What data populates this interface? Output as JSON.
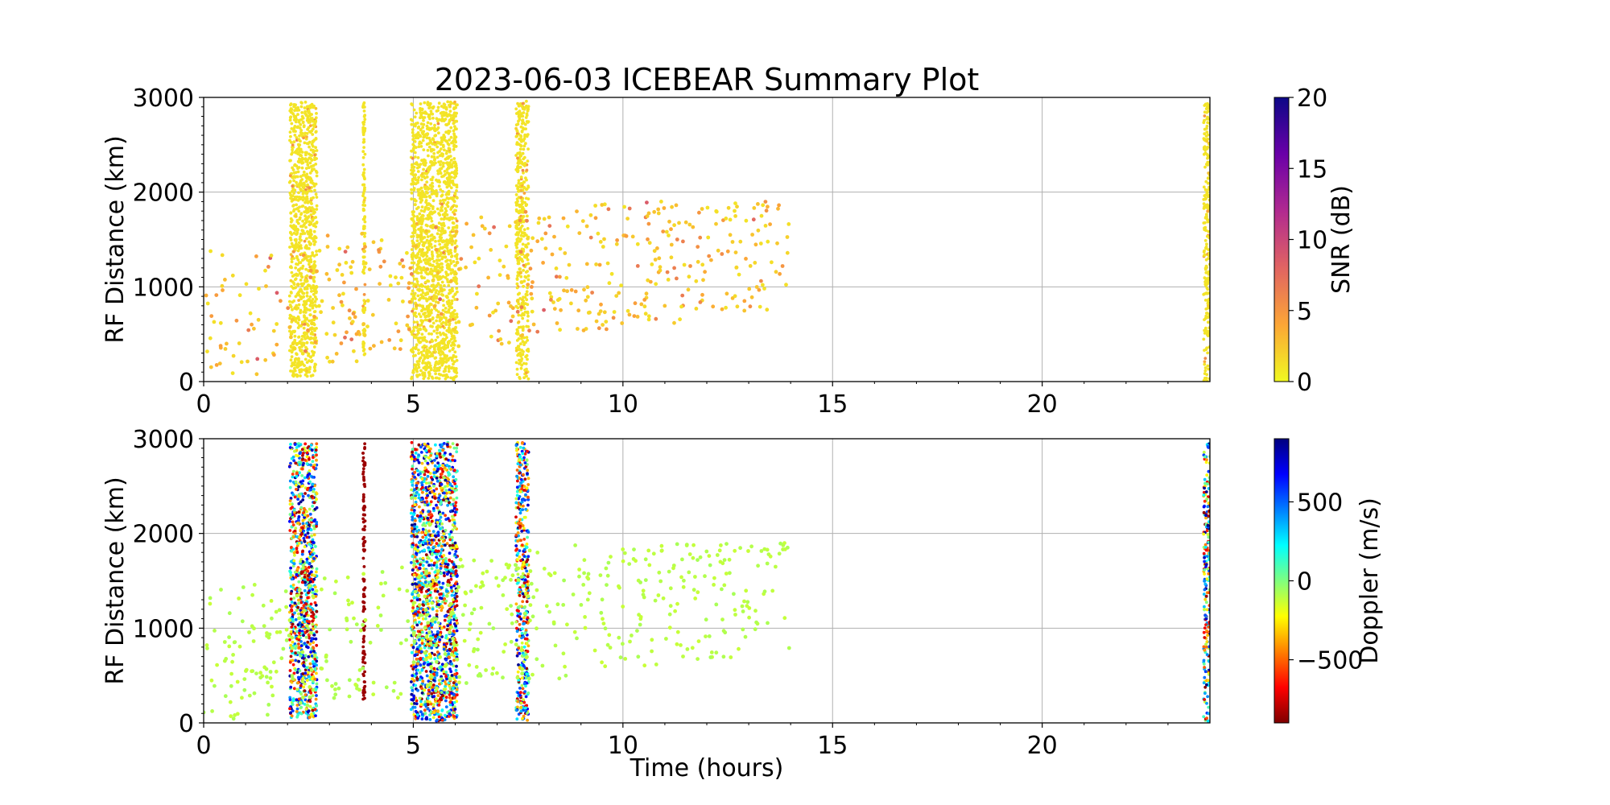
{
  "title": "2023-06-03 ICEBEAR Summary Plot",
  "chart_data": [
    {
      "type": "scatter",
      "name": "snr-panel",
      "xlabel": "",
      "ylabel": "RF Distance (km)",
      "xlim": [
        0,
        24
      ],
      "ylim": [
        0,
        3000
      ],
      "xticks": [
        0,
        5,
        10,
        15,
        20
      ],
      "yticks": [
        0,
        1000,
        2000,
        3000
      ],
      "grid": true,
      "colorbar": {
        "label": "SNR (dB)",
        "range": [
          0,
          20
        ],
        "ticks": [
          0,
          5,
          10,
          15,
          20
        ],
        "colormap": "plasma_r",
        "colors": [
          "#f0f921",
          "#fca636",
          "#e16462",
          "#b12a90",
          "#6a00a8",
          "#0d0887"
        ]
      },
      "series": [
        {
          "note": "dense vertical columns (time, km range) where echoes were recorded",
          "columns": [
            {
              "t": [
                2.05,
                2.7
              ],
              "r": [
                50,
                2950
              ],
              "snr": 1
            },
            {
              "t": [
                3.8,
                3.85
              ],
              "r": [
                250,
                2950
              ],
              "snr": 1
            },
            {
              "t": [
                4.95,
                6.05
              ],
              "r": [
                20,
                2960
              ],
              "snr": 1
            },
            {
              "t": [
                7.45,
                7.75
              ],
              "r": [
                20,
                2960
              ],
              "snr": 1
            },
            {
              "t": [
                23.85,
                24.0
              ],
              "r": [
                0,
                2960
              ],
              "snr": 1
            }
          ],
          "scatter_cloud": {
            "t": [
              0,
              14
            ],
            "r": [
              0,
              1900
            ],
            "snr": [
              1,
              9
            ]
          }
        }
      ]
    },
    {
      "type": "scatter",
      "name": "doppler-panel",
      "xlabel": "Time (hours)",
      "ylabel": "RF Distance (km)",
      "xlim": [
        0,
        24
      ],
      "ylim": [
        0,
        3000
      ],
      "xticks": [
        0,
        5,
        10,
        15,
        20
      ],
      "yticks": [
        0,
        1000,
        2000,
        3000
      ],
      "grid": true,
      "colorbar": {
        "label": "Doppler (m/s)",
        "range": [
          -900,
          900
        ],
        "ticks": [
          -500,
          0,
          500
        ],
        "tick_labels": [
          "−500",
          "0",
          "500"
        ],
        "colormap": "jet_r",
        "colors": [
          "#7f0000",
          "#ff0000",
          "#ff7f00",
          "#ffff00",
          "#7fff7f",
          "#00ffff",
          "#007fff",
          "#0000ff",
          "#00007f"
        ]
      },
      "series": [
        {
          "note": "same echoes as upper panel, coloured by Doppler velocity",
          "columns": [
            {
              "t": [
                2.05,
                2.7
              ],
              "r": [
                50,
                2950
              ],
              "doppler": "mixed"
            },
            {
              "t": [
                3.8,
                3.85
              ],
              "r": [
                250,
                2950
              ],
              "doppler": -850
            },
            {
              "t": [
                4.95,
                6.05
              ],
              "r": [
                20,
                2960
              ],
              "doppler": "mixed"
            },
            {
              "t": [
                7.45,
                7.75
              ],
              "r": [
                20,
                2960
              ],
              "doppler": "mixed"
            },
            {
              "t": [
                23.85,
                24.0
              ],
              "r": [
                0,
                2960
              ],
              "doppler": "mixed"
            }
          ],
          "scatter_cloud": {
            "t": [
              0,
              14
            ],
            "r": [
              0,
              1900
            ],
            "doppler": -100
          }
        }
      ]
    }
  ]
}
